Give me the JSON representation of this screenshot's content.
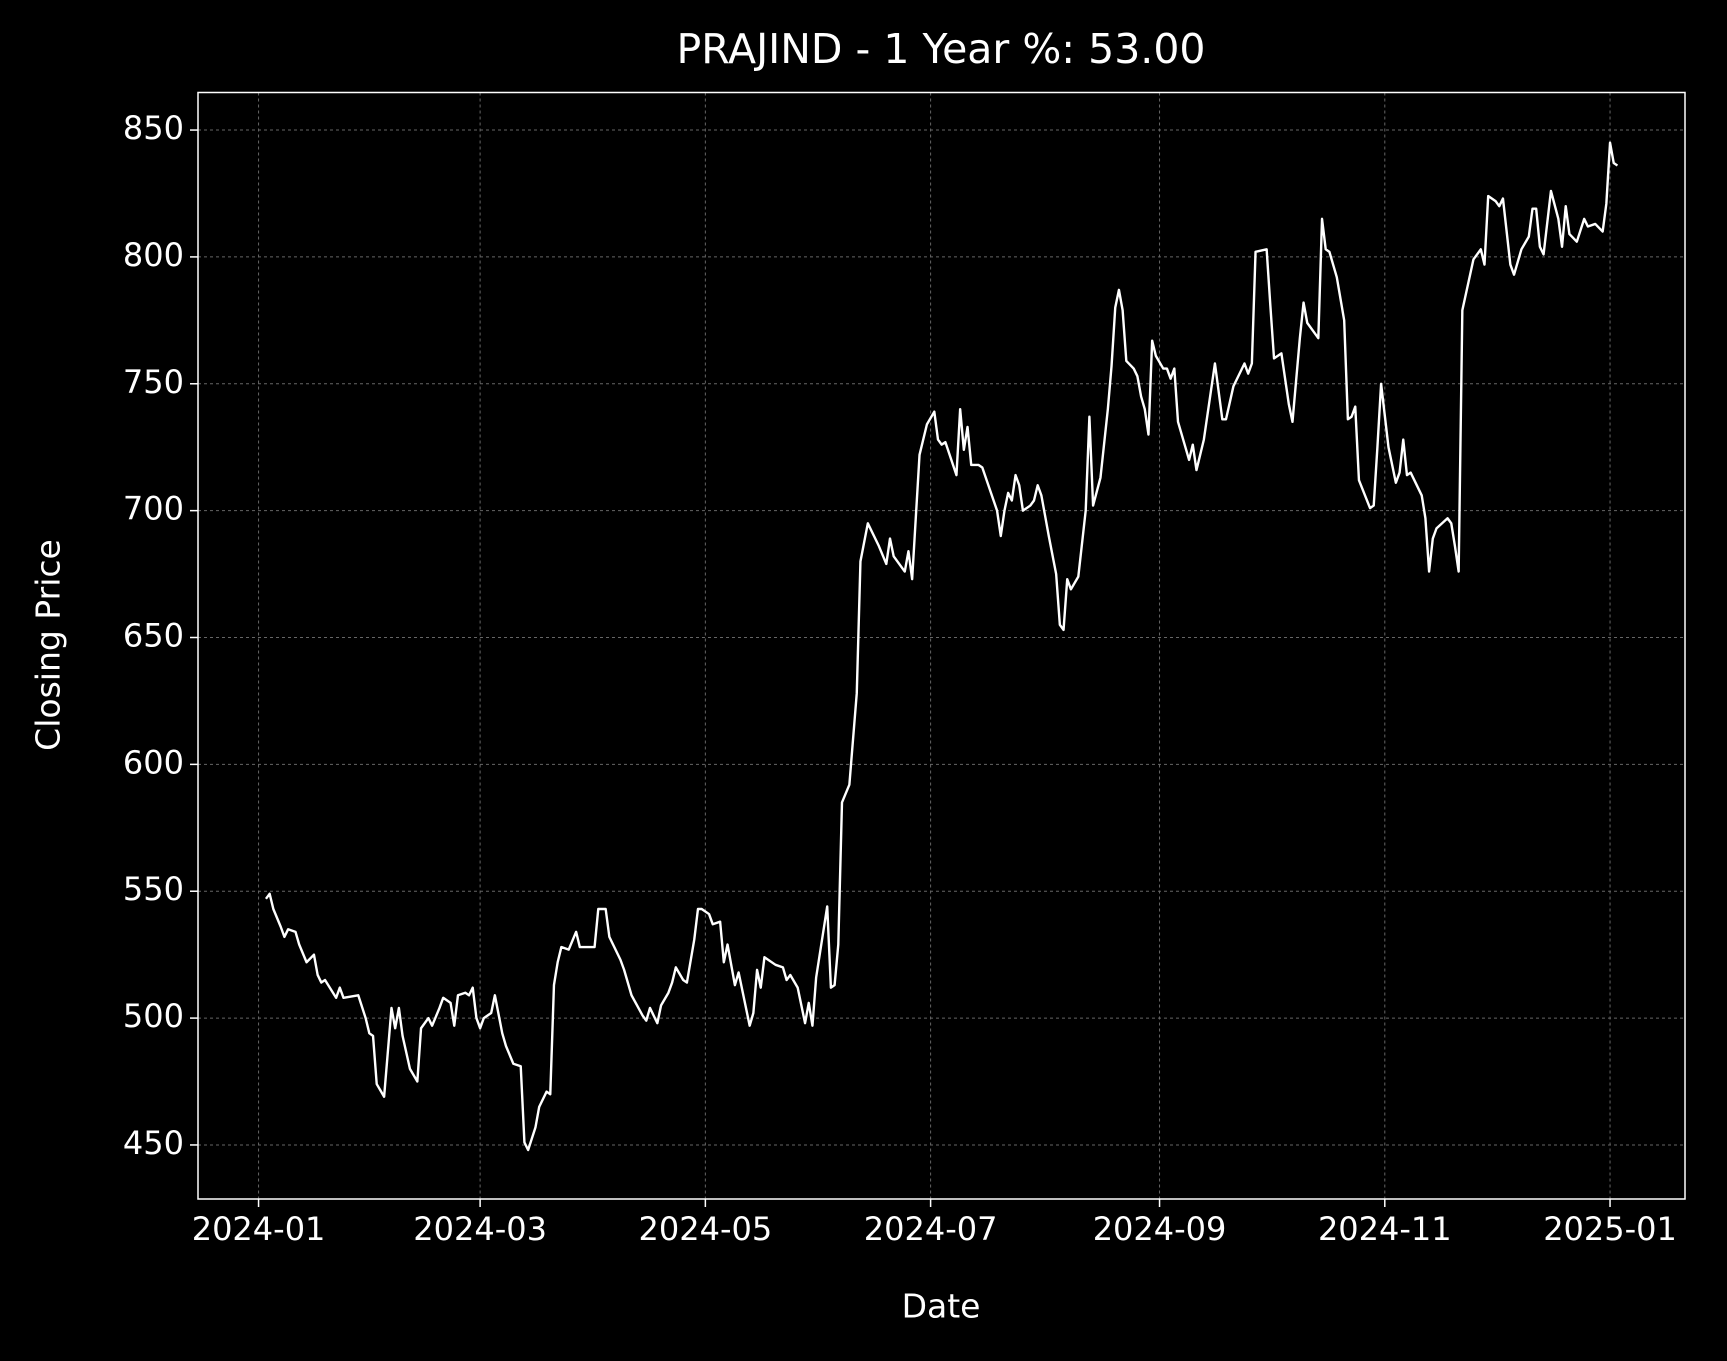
{
  "chart_data": {
    "type": "line",
    "title": "PRAJIND - 1 Year %: 53.00",
    "xlabel": "Date",
    "ylabel": "Closing Price",
    "color": "#ffffff",
    "grid": true,
    "xlim": [
      -16.4,
      386.3
    ],
    "ylim": [
      428.7,
      864.8
    ],
    "xticks": [
      {
        "value": 0,
        "label": "2024-01"
      },
      {
        "value": 60,
        "label": "2024-03"
      },
      {
        "value": 121,
        "label": "2024-05"
      },
      {
        "value": 182,
        "label": "2024-07"
      },
      {
        "value": 244,
        "label": "2024-09"
      },
      {
        "value": 305,
        "label": "2024-11"
      },
      {
        "value": 366,
        "label": "2025-01"
      }
    ],
    "yticks": [
      450,
      500,
      550,
      600,
      650,
      700,
      750,
      800,
      850
    ],
    "x": [
      2,
      3,
      4,
      6,
      7,
      8,
      10,
      11,
      13,
      15,
      16,
      17,
      18,
      21,
      22,
      23,
      27,
      29,
      30,
      31,
      32,
      34,
      36,
      37,
      38,
      39,
      41,
      43,
      44,
      46,
      47,
      49,
      50,
      52,
      53,
      54,
      56,
      57,
      58,
      59,
      60,
      61,
      63,
      64,
      66,
      67,
      69,
      71,
      72,
      73,
      75,
      76,
      78,
      79,
      80,
      81,
      82,
      84,
      86,
      87,
      89,
      91,
      92,
      94,
      95,
      98,
      99,
      101,
      104,
      105,
      106,
      108,
      109,
      111,
      112,
      113,
      115,
      116,
      118,
      119,
      120,
      122,
      123,
      125,
      126,
      127,
      129,
      130,
      133,
      134,
      135,
      136,
      137,
      140,
      142,
      143,
      144,
      146,
      148,
      149,
      150,
      151,
      154,
      155,
      156,
      157,
      158,
      160,
      162,
      163,
      165,
      168,
      170,
      171,
      172,
      175,
      176,
      177,
      179,
      181,
      183,
      184,
      185,
      186,
      189,
      190,
      191,
      192,
      193,
      195,
      196,
      200,
      201,
      202,
      203,
      204,
      205,
      206,
      207,
      209,
      210,
      211,
      212,
      213,
      214,
      216,
      217,
      218,
      219,
      220,
      222,
      224,
      225,
      226,
      228,
      230,
      231,
      232,
      233,
      234,
      235,
      237,
      238,
      239,
      240,
      241,
      242,
      243,
      245,
      246,
      247,
      248,
      249,
      251,
      252,
      253,
      254,
      256,
      258,
      259,
      261,
      262,
      264,
      266,
      267,
      268,
      269,
      270,
      273,
      274,
      275,
      277,
      279,
      280,
      282,
      283,
      284,
      286,
      287,
      288,
      289,
      290,
      292,
      294,
      295,
      296,
      297,
      298,
      301,
      302,
      303,
      304,
      306,
      308,
      309,
      310,
      311,
      312,
      315,
      316,
      317,
      318,
      319,
      322,
      323,
      324,
      325,
      326,
      329,
      331,
      332,
      333,
      335,
      336,
      337,
      339,
      340,
      342,
      344,
      345,
      346,
      347,
      348,
      350,
      352,
      353,
      354,
      355,
      357,
      359,
      360,
      362,
      364,
      365,
      366,
      367,
      368
    ],
    "values": [
      547,
      549,
      543,
      536,
      532,
      535,
      534,
      529,
      522,
      525,
      517,
      514,
      515,
      508,
      512,
      508,
      509,
      500,
      494,
      493,
      474,
      469,
      504,
      496,
      504,
      493,
      480,
      475,
      496,
      500,
      497,
      504,
      508,
      506,
      497,
      509,
      510,
      509,
      512,
      500,
      496,
      500,
      502,
      509,
      494,
      489,
      482,
      481,
      451,
      448,
      457,
      465,
      471,
      470,
      513,
      522,
      528,
      527,
      534,
      528,
      528,
      528,
      543,
      543,
      532,
      523,
      519,
      509,
      501,
      499,
      504,
      498,
      505,
      510,
      514,
      520,
      515,
      514,
      531,
      543,
      543,
      541,
      537,
      538,
      522,
      529,
      513,
      518,
      497,
      502,
      519,
      512,
      524,
      521,
      520,
      515,
      517,
      512,
      498,
      506,
      497,
      516,
      544,
      512,
      513,
      529,
      585,
      592,
      628,
      680,
      695,
      686,
      679,
      689,
      682,
      676,
      684,
      673,
      722,
      734,
      739,
      728,
      726,
      727,
      714,
      740,
      724,
      733,
      718,
      718,
      717,
      700,
      690,
      700,
      707,
      704,
      714,
      710,
      700,
      702,
      704,
      710,
      706,
      698,
      690,
      675,
      655,
      653,
      673,
      669,
      674,
      700,
      737,
      702,
      713,
      740,
      757,
      780,
      787,
      779,
      759,
      756,
      753,
      745,
      740,
      730,
      767,
      761,
      756,
      756,
      752,
      756,
      735,
      725,
      720,
      726,
      716,
      728,
      748,
      758,
      736,
      736,
      749,
      755,
      758,
      754,
      758,
      802,
      803,
      781,
      760,
      762,
      742,
      735,
      768,
      782,
      774,
      770,
      768,
      815,
      803,
      802,
      792,
      775,
      736,
      737,
      741,
      712,
      701,
      702,
      725,
      750,
      725,
      711,
      715,
      728,
      714,
      715,
      706,
      697,
      676,
      689,
      693,
      697,
      695,
      686,
      676,
      779,
      799,
      803,
      797,
      824,
      822,
      820,
      823,
      797,
      793,
      803,
      808,
      819,
      819,
      804,
      801,
      826,
      815,
      804,
      820,
      809,
      806,
      815,
      812,
      813,
      810,
      821,
      845,
      837,
      836
    ]
  }
}
